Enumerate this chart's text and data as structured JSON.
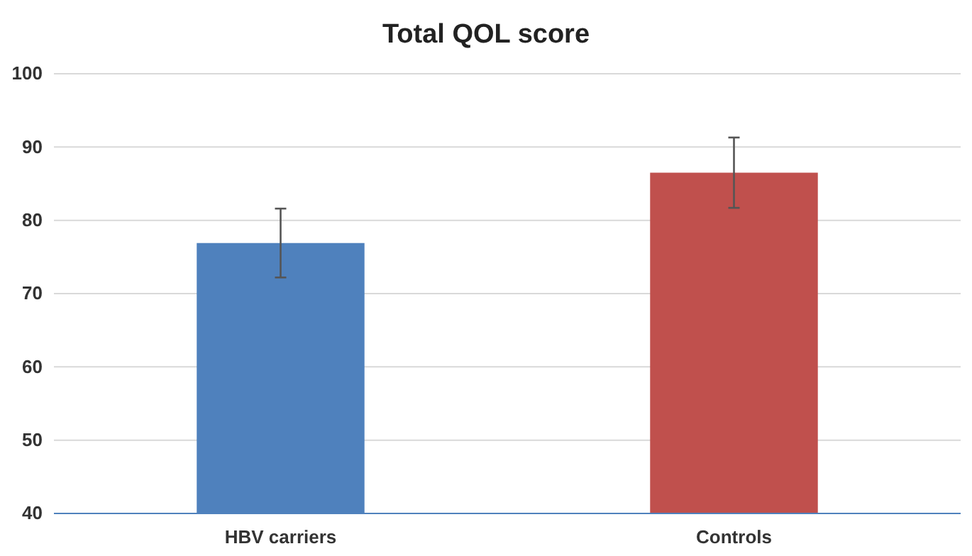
{
  "chart_data": {
    "type": "bar",
    "title": "Total QOL score",
    "categories": [
      "HBV carriers",
      "Controls"
    ],
    "values": [
      76.9,
      86.5
    ],
    "colors": [
      "#4f81bd",
      "#c0504d"
    ],
    "errors": [
      4.7,
      4.8
    ],
    "ylim": [
      40,
      100
    ],
    "yticks": [
      40,
      50,
      60,
      70,
      80,
      90,
      100
    ],
    "grid": "y"
  }
}
